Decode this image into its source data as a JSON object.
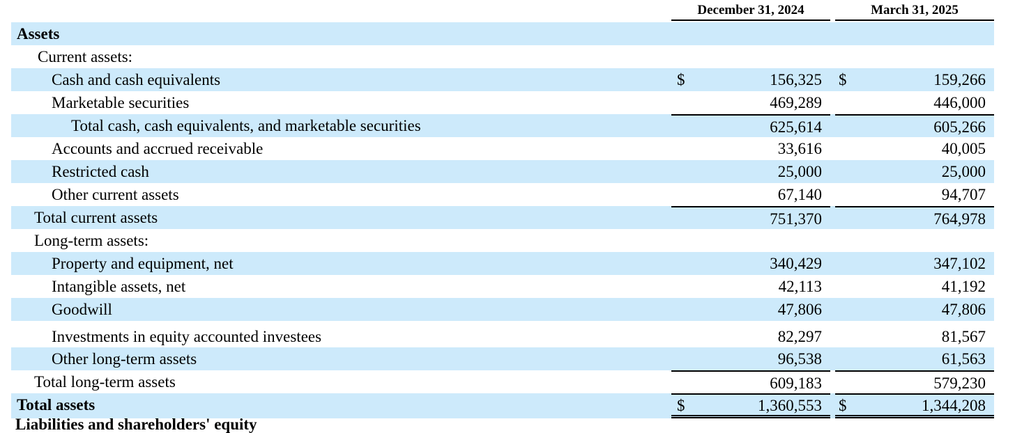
{
  "columns": {
    "col1": "December 31, 2024",
    "col2": "March 31, 2025"
  },
  "currency_symbol": "$",
  "rows": [
    {
      "label": "Assets"
    },
    {
      "label": "Current assets:"
    },
    {
      "label": "Cash and cash equivalents",
      "v1": "156,325",
      "v2": "159,266"
    },
    {
      "label": "Marketable securities",
      "v1": "469,289",
      "v2": "446,000"
    },
    {
      "label": "Total cash, cash equivalents, and marketable securities",
      "v1": "625,614",
      "v2": "605,266"
    },
    {
      "label": "Accounts and accrued receivable",
      "v1": "33,616",
      "v2": "40,005"
    },
    {
      "label": "Restricted cash",
      "v1": "25,000",
      "v2": "25,000"
    },
    {
      "label": "Other current assets",
      "v1": "67,140",
      "v2": "94,707"
    },
    {
      "label": "Total current assets",
      "v1": "751,370",
      "v2": "764,978"
    },
    {
      "label": "Long-term assets:"
    },
    {
      "label": "Property and equipment, net",
      "v1": "340,429",
      "v2": "347,102"
    },
    {
      "label": "Intangible assets, net",
      "v1": "42,113",
      "v2": "41,192"
    },
    {
      "label": "Goodwill",
      "v1": "47,806",
      "v2": "47,806"
    },
    {
      "label": "Investments in equity accounted investees",
      "v1": "82,297",
      "v2": "81,567"
    },
    {
      "label": "Other long-term assets",
      "v1": "96,538",
      "v2": "61,563"
    },
    {
      "label": "Total long-term assets",
      "v1": "609,183",
      "v2": "579,230"
    },
    {
      "label": "Total assets",
      "v1": "1,360,553",
      "v2": "1,344,208"
    }
  ],
  "next_section_partial": "Liabilities and shareholders' equity"
}
